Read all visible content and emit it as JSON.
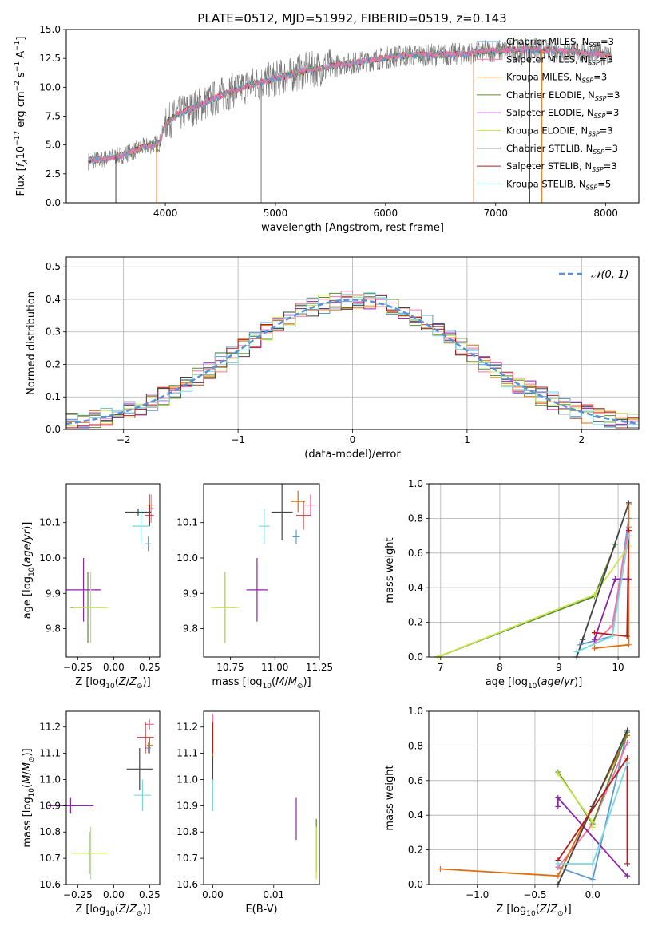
{
  "figure": {
    "title": "PLATE=0512, MJD=51992, FIBERID=0519, z=0.143"
  },
  "model_colors": [
    "#5b9bd5",
    "#ff6fa6",
    "#e36c09",
    "#5a8a30",
    "#8e24aa",
    "#c8e64c",
    "#444444",
    "#b71c1c",
    "#7bd8e0"
  ],
  "chart_data": [
    {
      "id": "spectrum",
      "type": "line",
      "title": "PLATE=0512, MJD=51992, FIBERID=0519, z=0.143",
      "xlabel": "wavelength [Angstrom, rest frame]",
      "ylabel": "Flux [f_λ 10^-17 erg cm^-2 s^-1 A^-1]",
      "xlim": [
        3100,
        8300
      ],
      "ylim": [
        0,
        15
      ],
      "xticks": [
        "4000",
        "5000",
        "6000",
        "7000",
        "8000"
      ],
      "yticks": [
        "0.0",
        "2.5",
        "5.0",
        "7.5",
        "10.0",
        "12.5",
        "15.0"
      ],
      "legend_position": "right",
      "legend": [
        {
          "name": "Chabrier MILES",
          "n_ssp": "3"
        },
        {
          "name": "Salpeter MILES",
          "n_ssp": "3"
        },
        {
          "name": "Kroupa MILES",
          "n_ssp": "3"
        },
        {
          "name": "Chabrier ELODIE",
          "n_ssp": "3"
        },
        {
          "name": "Salpeter ELODIE",
          "n_ssp": "3"
        },
        {
          "name": "Kroupa ELODIE",
          "n_ssp": "3"
        },
        {
          "name": "Chabrier STELIB",
          "n_ssp": "3"
        },
        {
          "name": "Salpeter STELIB",
          "n_ssp": "3"
        },
        {
          "name": "Kroupa STELIB",
          "n_ssp": "5"
        }
      ],
      "continuum": {
        "x": [
          3300,
          3450,
          3600,
          3800,
          3950,
          4000,
          4100,
          4300,
          4500,
          4700,
          4900,
          5100,
          5300,
          5500,
          5700,
          5900,
          6100,
          6300,
          6500,
          6700,
          6900,
          7100,
          7300,
          7500,
          7700,
          7900,
          8050
        ],
        "y": [
          3.6,
          3.8,
          4.1,
          4.8,
          5.2,
          6.8,
          7.6,
          8.4,
          9.3,
          10.0,
          10.5,
          11.0,
          11.5,
          11.8,
          12.1,
          12.4,
          12.7,
          12.8,
          12.8,
          12.9,
          13.1,
          13.2,
          13.3,
          13.2,
          13.1,
          12.9,
          12.8
        ]
      },
      "spikes": [
        {
          "x": 3550,
          "y": 0.0
        },
        {
          "x": 3920,
          "y": 0.0
        },
        {
          "x": 4870,
          "y": 0.0
        },
        {
          "x": 6800,
          "y": 0.0
        },
        {
          "x": 7310,
          "y": 0.0
        },
        {
          "x": 7420,
          "y": 0.0
        }
      ]
    },
    {
      "id": "residuals",
      "type": "histogram",
      "xlabel": "(data-model)/error",
      "ylabel": "Normed distribution",
      "xlim": [
        -2.5,
        2.5
      ],
      "ylim": [
        0,
        0.53
      ],
      "xticks": [
        "−2",
        "−1",
        "0",
        "1",
        "2"
      ],
      "yticks": [
        "0.0",
        "0.1",
        "0.2",
        "0.3",
        "0.4",
        "0.5"
      ],
      "grid": true,
      "legend": "𝒩(0, 1)",
      "legend_position": "top-right",
      "bin_width": 0.1
    },
    {
      "id": "z-age",
      "type": "errorbar",
      "xlabel": "Z [log10(Z/Z⊙)]",
      "ylabel": "age [log10(age/yr)]",
      "xlim": [
        -0.33,
        0.32
      ],
      "ylim": [
        9.72,
        10.21
      ],
      "xticks": [
        "−0.25",
        "0.00",
        "0.25"
      ],
      "yticks": [
        "9.8",
        "9.9",
        "10.0",
        "10.1"
      ],
      "points": [
        {
          "model": 0,
          "x": 0.24,
          "y": 10.04,
          "xerr": 0.02,
          "yerr": 0.02
        },
        {
          "model": 1,
          "x": 0.26,
          "y": 10.14,
          "xerr": 0.02,
          "yerr": 0.04
        },
        {
          "model": 2,
          "x": 0.25,
          "y": 10.15,
          "xerr": 0.02,
          "yerr": 0.03
        },
        {
          "model": 3,
          "x": -0.18,
          "y": 9.86,
          "xerr": 0.12,
          "yerr": 0.1
        },
        {
          "model": 4,
          "x": -0.21,
          "y": 9.91,
          "xerr": 0.12,
          "yerr": 0.09
        },
        {
          "model": 5,
          "x": -0.16,
          "y": 9.86,
          "xerr": 0.12,
          "yerr": 0.1
        },
        {
          "model": 6,
          "x": 0.17,
          "y": 10.13,
          "xerr": 0.09,
          "yerr": 0.01
        },
        {
          "model": 7,
          "x": 0.25,
          "y": 10.12,
          "xerr": 0.03,
          "yerr": 0.03
        },
        {
          "model": 8,
          "x": 0.19,
          "y": 10.09,
          "xerr": 0.06,
          "yerr": 0.05
        }
      ]
    },
    {
      "id": "mass-age",
      "type": "errorbar",
      "xlabel": "mass [log10(M/M⊙)]",
      "ylabel": "",
      "xlim": [
        10.6,
        11.25
      ],
      "ylim": [
        9.72,
        10.21
      ],
      "xticks": [
        "10.75",
        "11.00",
        "11.25"
      ],
      "yticks": [
        "9.8",
        "9.9",
        "10.0",
        "10.1"
      ],
      "points": [
        {
          "model": 0,
          "x": 11.12,
          "y": 10.06,
          "xerr": 0.02,
          "yerr": 0.02
        },
        {
          "model": 1,
          "x": 11.2,
          "y": 10.15,
          "xerr": 0.03,
          "yerr": 0.03
        },
        {
          "model": 2,
          "x": 11.13,
          "y": 10.16,
          "xerr": 0.04,
          "yerr": 0.03
        },
        {
          "model": 3,
          "x": 10.72,
          "y": 9.86,
          "xerr": 0.06,
          "yerr": 0.1
        },
        {
          "model": 4,
          "x": 10.9,
          "y": 9.91,
          "xerr": 0.06,
          "yerr": 0.09
        },
        {
          "model": 5,
          "x": 10.72,
          "y": 9.86,
          "xerr": 0.08,
          "yerr": 0.1
        },
        {
          "model": 6,
          "x": 11.04,
          "y": 10.13,
          "xerr": 0.06,
          "yerr": 0.08
        },
        {
          "model": 7,
          "x": 11.16,
          "y": 10.12,
          "xerr": 0.04,
          "yerr": 0.04
        },
        {
          "model": 8,
          "x": 10.94,
          "y": 10.09,
          "xerr": 0.03,
          "yerr": 0.05
        }
      ]
    },
    {
      "id": "age-weight",
      "type": "line",
      "xlabel": "age [log10(age/yr)]",
      "ylabel": "mass weight",
      "xlim": [
        6.8,
        10.35
      ],
      "ylim": [
        0,
        1
      ],
      "xticks": [
        "7",
        "8",
        "9",
        "10"
      ],
      "yticks": [
        "0.0",
        "0.2",
        "0.4",
        "0.6",
        "0.8",
        "1.0"
      ],
      "grid": true,
      "series": [
        {
          "model": 0,
          "x": [
            9.35,
            9.9,
            10.18
          ],
          "y": [
            0.07,
            0.12,
            0.8
          ]
        },
        {
          "model": 1,
          "x": [
            9.6,
            9.9,
            10.18
          ],
          "y": [
            0.08,
            0.18,
            0.75
          ]
        },
        {
          "model": 2,
          "x": [
            9.6,
            10.18,
            10.18
          ],
          "y": [
            0.05,
            0.07,
            0.88
          ]
        },
        {
          "model": 3,
          "x": [
            6.95,
            9.6,
            9.95
          ],
          "y": [
            0.0,
            0.35,
            0.65
          ]
        },
        {
          "model": 4,
          "x": [
            9.6,
            9.95,
            10.18
          ],
          "y": [
            0.1,
            0.45,
            0.45
          ]
        },
        {
          "model": 5,
          "x": [
            6.95,
            9.6,
            10.18
          ],
          "y": [
            0.0,
            0.36,
            0.64
          ]
        },
        {
          "model": 6,
          "x": [
            9.3,
            9.4,
            10.18
          ],
          "y": [
            0.0,
            0.1,
            0.89
          ]
        },
        {
          "model": 7,
          "x": [
            9.6,
            10.15,
            10.18
          ],
          "y": [
            0.14,
            0.12,
            0.73
          ]
        },
        {
          "model": 8,
          "x": [
            9.3,
            9.9,
            10.18
          ],
          "y": [
            0.03,
            0.12,
            0.7
          ]
        }
      ]
    },
    {
      "id": "z-mass",
      "type": "errorbar",
      "xlabel": "Z [log10(Z/Z⊙)]",
      "ylabel": "mass [log10(M/M⊙)]",
      "xlim": [
        -0.33,
        0.32
      ],
      "ylim": [
        10.6,
        11.26
      ],
      "xticks": [
        "−0.25",
        "0.00",
        "0.25"
      ],
      "yticks": [
        "10.6",
        "10.7",
        "10.8",
        "10.9",
        "11.0",
        "11.1",
        "11.2"
      ],
      "points": [
        {
          "model": 0,
          "x": 0.24,
          "y": 11.12,
          "xerr": 0.02,
          "yerr": 0.02
        },
        {
          "model": 1,
          "x": 0.25,
          "y": 11.21,
          "xerr": 0.03,
          "yerr": 0.02
        },
        {
          "model": 2,
          "x": 0.25,
          "y": 11.13,
          "xerr": 0.02,
          "yerr": 0.03
        },
        {
          "model": 3,
          "x": -0.17,
          "y": 10.72,
          "xerr": 0.12,
          "yerr": 0.08
        },
        {
          "model": 4,
          "x": -0.3,
          "y": 10.9,
          "xerr": 0.16,
          "yerr": 0.03
        },
        {
          "model": 5,
          "x": -0.16,
          "y": 10.72,
          "xerr": 0.12,
          "yerr": 0.1
        },
        {
          "model": 6,
          "x": 0.18,
          "y": 11.04,
          "xerr": 0.09,
          "yerr": 0.08
        },
        {
          "model": 7,
          "x": 0.22,
          "y": 11.16,
          "xerr": 0.06,
          "yerr": 0.06
        },
        {
          "model": 8,
          "x": 0.2,
          "y": 10.94,
          "xerr": 0.06,
          "yerr": 0.06
        }
      ]
    },
    {
      "id": "ebv-mass",
      "type": "errorbar",
      "xlabel": "E(B-V)",
      "ylabel": "",
      "xlim": [
        -0.0015,
        0.0175
      ],
      "ylim": [
        10.6,
        11.26
      ],
      "xticks": [
        "0.00",
        "0.01"
      ],
      "yticks": [
        "10.6",
        "10.7",
        "10.8",
        "10.9",
        "11.0",
        "11.1",
        "11.2"
      ],
      "points": [
        {
          "model": 0,
          "x": 0.0,
          "y": 11.12,
          "xerr": 0.0,
          "yerr": 0.06
        },
        {
          "model": 1,
          "x": 0.0,
          "y": 11.21,
          "xerr": 0.0,
          "yerr": 0.04
        },
        {
          "model": 2,
          "x": 0.0,
          "y": 11.13,
          "xerr": 0.0,
          "yerr": 0.04
        },
        {
          "model": 3,
          "x": 0.017,
          "y": 10.75,
          "xerr": 0.0,
          "yerr": 0.1
        },
        {
          "model": 4,
          "x": 0.0137,
          "y": 10.85,
          "xerr": 0.0,
          "yerr": 0.08
        },
        {
          "model": 5,
          "x": 0.017,
          "y": 10.72,
          "xerr": 0.0,
          "yerr": 0.1
        },
        {
          "model": 6,
          "x": 0.0,
          "y": 11.04,
          "xerr": 0.0,
          "yerr": 0.05
        },
        {
          "model": 7,
          "x": 0.0,
          "y": 11.16,
          "xerr": 0.0,
          "yerr": 0.06
        },
        {
          "model": 8,
          "x": 0.0,
          "y": 10.94,
          "xerr": 0.0,
          "yerr": 0.06
        }
      ]
    },
    {
      "id": "z-weight",
      "type": "line",
      "xlabel": "Z [log10(Z/Z⊙)]",
      "ylabel": "mass weight",
      "xlim": [
        -1.42,
        0.4
      ],
      "ylim": [
        0,
        1
      ],
      "xticks": [
        "−1.0",
        "−0.5",
        "0.0"
      ],
      "yticks": [
        "0.0",
        "0.2",
        "0.4",
        "0.6",
        "0.8",
        "1.0"
      ],
      "grid": true,
      "series": [
        {
          "model": 0,
          "x": [
            -0.3,
            0.0,
            0.3
          ],
          "y": [
            0.1,
            0.03,
            0.88
          ]
        },
        {
          "model": 1,
          "x": [
            -0.3,
            0.0,
            0.3
          ],
          "y": [
            0.1,
            0.35,
            0.82
          ]
        },
        {
          "model": 2,
          "x": [
            -1.32,
            -0.3,
            0.3
          ],
          "y": [
            0.09,
            0.05,
            0.86
          ]
        },
        {
          "model": 3,
          "x": [
            -0.3,
            0.0,
            0.3
          ],
          "y": [
            0.65,
            0.35,
            0.88
          ]
        },
        {
          "model": 4,
          "x": [
            -0.3,
            -0.3,
            0.3
          ],
          "y": [
            0.45,
            0.5,
            0.05
          ]
        },
        {
          "model": 5,
          "x": [
            -0.3,
            0.0,
            0.0
          ],
          "y": [
            0.64,
            0.36,
            0.33
          ]
        },
        {
          "model": 6,
          "x": [
            -0.3,
            0.0,
            0.3
          ],
          "y": [
            0.0,
            0.45,
            0.89
          ]
        },
        {
          "model": 7,
          "x": [
            -0.3,
            0.3,
            0.3
          ],
          "y": [
            0.14,
            0.73,
            0.12
          ]
        },
        {
          "model": 8,
          "x": [
            -0.3,
            0.0,
            0.3
          ],
          "y": [
            0.12,
            0.12,
            0.7
          ]
        }
      ]
    }
  ]
}
